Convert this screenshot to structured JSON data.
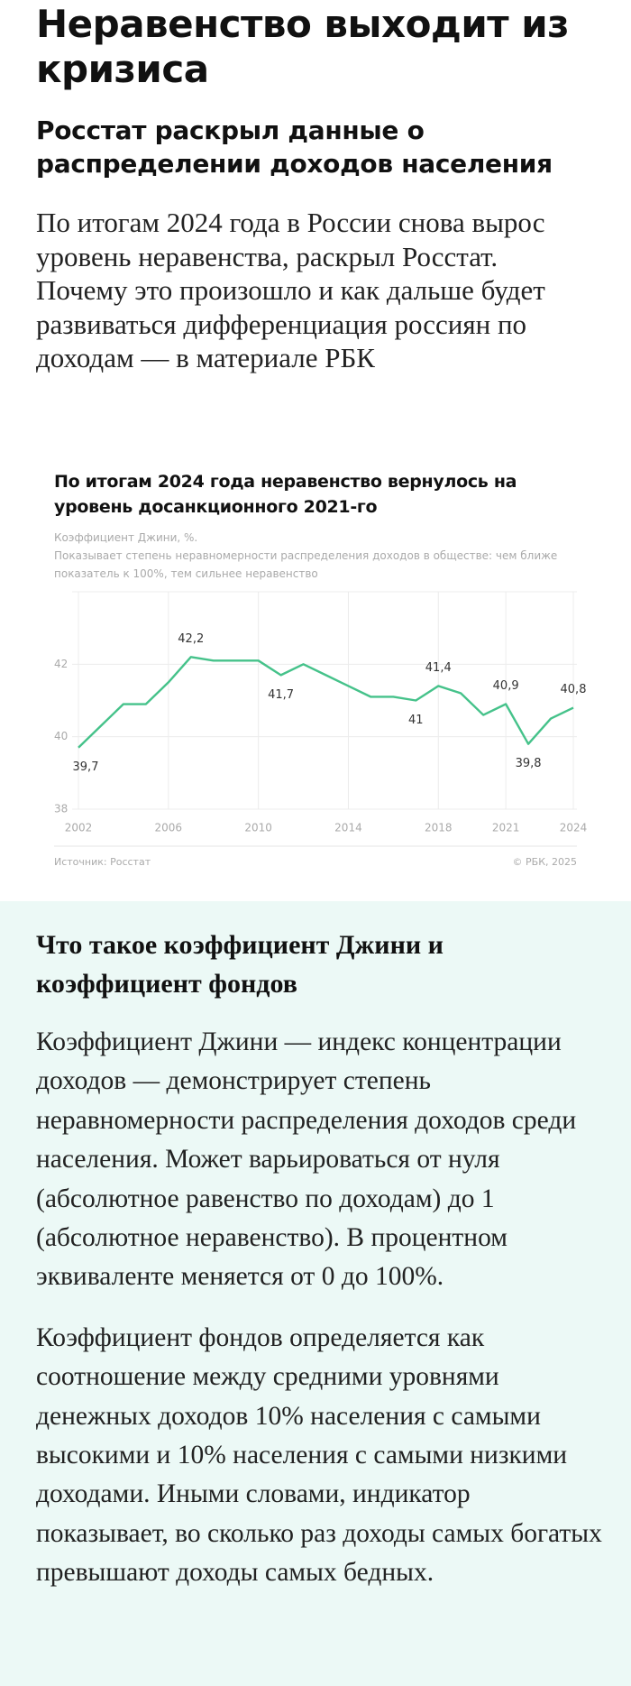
{
  "header": {
    "title": "Неравенство выходит из кризиса",
    "subtitle": "Росстат раскрыл данные о распределении доходов населения",
    "lead": "По итогам 2024 года в России снова вырос уровень неравенства, раскрыл Росстат. Почему это произошло и как дальше будет развиваться дифференциация россиян по доходам — в материале РБК"
  },
  "chart_data": {
    "type": "line",
    "title": "По итогам 2024 года неравенство вернулось на уровень досанкционного 2021-го",
    "unit_note": "Коэффициент Джини, %.",
    "subtitle": "Показывает степень неравномерности распределения доходов в обществе: чем ближе показатель к 100%, тем сильнее неравенство",
    "x": [
      2002,
      2003,
      2004,
      2005,
      2006,
      2007,
      2008,
      2009,
      2010,
      2011,
      2012,
      2013,
      2014,
      2015,
      2016,
      2017,
      2018,
      2019,
      2020,
      2021,
      2022,
      2023,
      2024
    ],
    "values": [
      39.7,
      40.3,
      40.9,
      40.9,
      41.5,
      42.2,
      42.1,
      42.1,
      42.1,
      41.7,
      42.0,
      41.7,
      41.4,
      41.1,
      41.1,
      41.0,
      41.4,
      41.2,
      40.6,
      40.9,
      39.8,
      40.5,
      40.8
    ],
    "value_labels": [
      "39,7",
      null,
      null,
      null,
      null,
      "42,2",
      null,
      null,
      null,
      "41,7",
      null,
      null,
      null,
      null,
      null,
      "41",
      "41,4",
      null,
      null,
      "40,9",
      "39,8",
      null,
      "40,8"
    ],
    "color": "#45c28a",
    "xlim": [
      2002,
      2024
    ],
    "xticks": [
      2002,
      2006,
      2010,
      2014,
      2018,
      2021,
      2024
    ],
    "ylim": [
      38,
      44
    ],
    "yticks": [
      38,
      40,
      42
    ],
    "grid": true,
    "source": "Источник: Росстат",
    "copyright": "© РБК, 2025"
  },
  "infobox": {
    "title": "Что такое коэффициент Джини и коэффициент фондов",
    "paragraphs": [
      "Коэффициент Джини — индекс концентрации доходов — демонстрирует степень неравномерности распределения доходов среди населения. Может варьироваться от нуля (абсолютное равенство по доходам) до 1 (абсолютное неравенство). В процентном эквиваленте меняется от 0 до 100%.",
      "Коэффициент фондов определяется как соотношение между средними уровнями денежных доходов 10% населения с самыми высокими и 10% населения с самыми низкими доходами. Иными словами, индикатор показывает, во сколько раз доходы самых богатых превышают доходы самых бедных."
    ]
  }
}
